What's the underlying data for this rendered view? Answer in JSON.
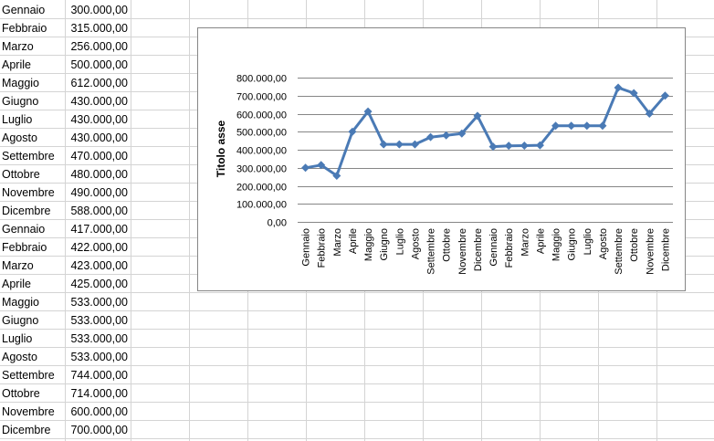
{
  "sheet": {
    "rows": [
      {
        "month": "Gennaio",
        "value": "300.000,00"
      },
      {
        "month": "Febbraio",
        "value": "315.000,00"
      },
      {
        "month": "Marzo",
        "value": "256.000,00"
      },
      {
        "month": "Aprile",
        "value": "500.000,00"
      },
      {
        "month": "Maggio",
        "value": "612.000,00"
      },
      {
        "month": "Giugno",
        "value": "430.000,00"
      },
      {
        "month": "Luglio",
        "value": "430.000,00"
      },
      {
        "month": "Agosto",
        "value": "430.000,00"
      },
      {
        "month": "Settembre",
        "value": "470.000,00"
      },
      {
        "month": "Ottobre",
        "value": "480.000,00"
      },
      {
        "month": "Novembre",
        "value": "490.000,00"
      },
      {
        "month": "Dicembre",
        "value": "588.000,00"
      },
      {
        "month": "Gennaio",
        "value": "417.000,00"
      },
      {
        "month": "Febbraio",
        "value": "422.000,00"
      },
      {
        "month": "Marzo",
        "value": "423.000,00"
      },
      {
        "month": "Aprile",
        "value": "425.000,00"
      },
      {
        "month": "Maggio",
        "value": "533.000,00"
      },
      {
        "month": "Giugno",
        "value": "533.000,00"
      },
      {
        "month": "Luglio",
        "value": "533.000,00"
      },
      {
        "month": "Agosto",
        "value": "533.000,00"
      },
      {
        "month": "Settembre",
        "value": "744.000,00"
      },
      {
        "month": "Ottobre",
        "value": "714.000,00"
      },
      {
        "month": "Novembre",
        "value": "600.000,00"
      },
      {
        "month": "Dicembre",
        "value": "700.000,00"
      }
    ],
    "gridline_color": "#d4d4d4"
  },
  "chart_data": {
    "type": "line",
    "title": "",
    "xlabel": "",
    "ylabel": "Titolo asse",
    "categories": [
      "Gennaio",
      "Febbraio",
      "Marzo",
      "Aprile",
      "Maggio",
      "Giugno",
      "Luglio",
      "Agosto",
      "Settembre",
      "Ottobre",
      "Novembre",
      "Dicembre",
      "Gennaio",
      "Febbraio",
      "Marzo",
      "Aprile",
      "Maggio",
      "Giugno",
      "Luglio",
      "Agosto",
      "Settembre",
      "Ottobre",
      "Novembre",
      "Dicembre"
    ],
    "series": [
      {
        "values": [
          300000,
          315000,
          256000,
          500000,
          612000,
          430000,
          430000,
          430000,
          470000,
          480000,
          490000,
          588000,
          417000,
          422000,
          423000,
          425000,
          533000,
          533000,
          533000,
          533000,
          744000,
          714000,
          600000,
          700000
        ]
      }
    ],
    "ylim": [
      0,
      800000
    ],
    "yticks": [
      "0,00",
      "100.000,00",
      "200.000,00",
      "300.000,00",
      "400.000,00",
      "500.000,00",
      "600.000,00",
      "700.000,00",
      "800.000,00"
    ],
    "grid": true,
    "legend": "none",
    "line_color": "#4a7ab5",
    "marker": "diamond"
  }
}
